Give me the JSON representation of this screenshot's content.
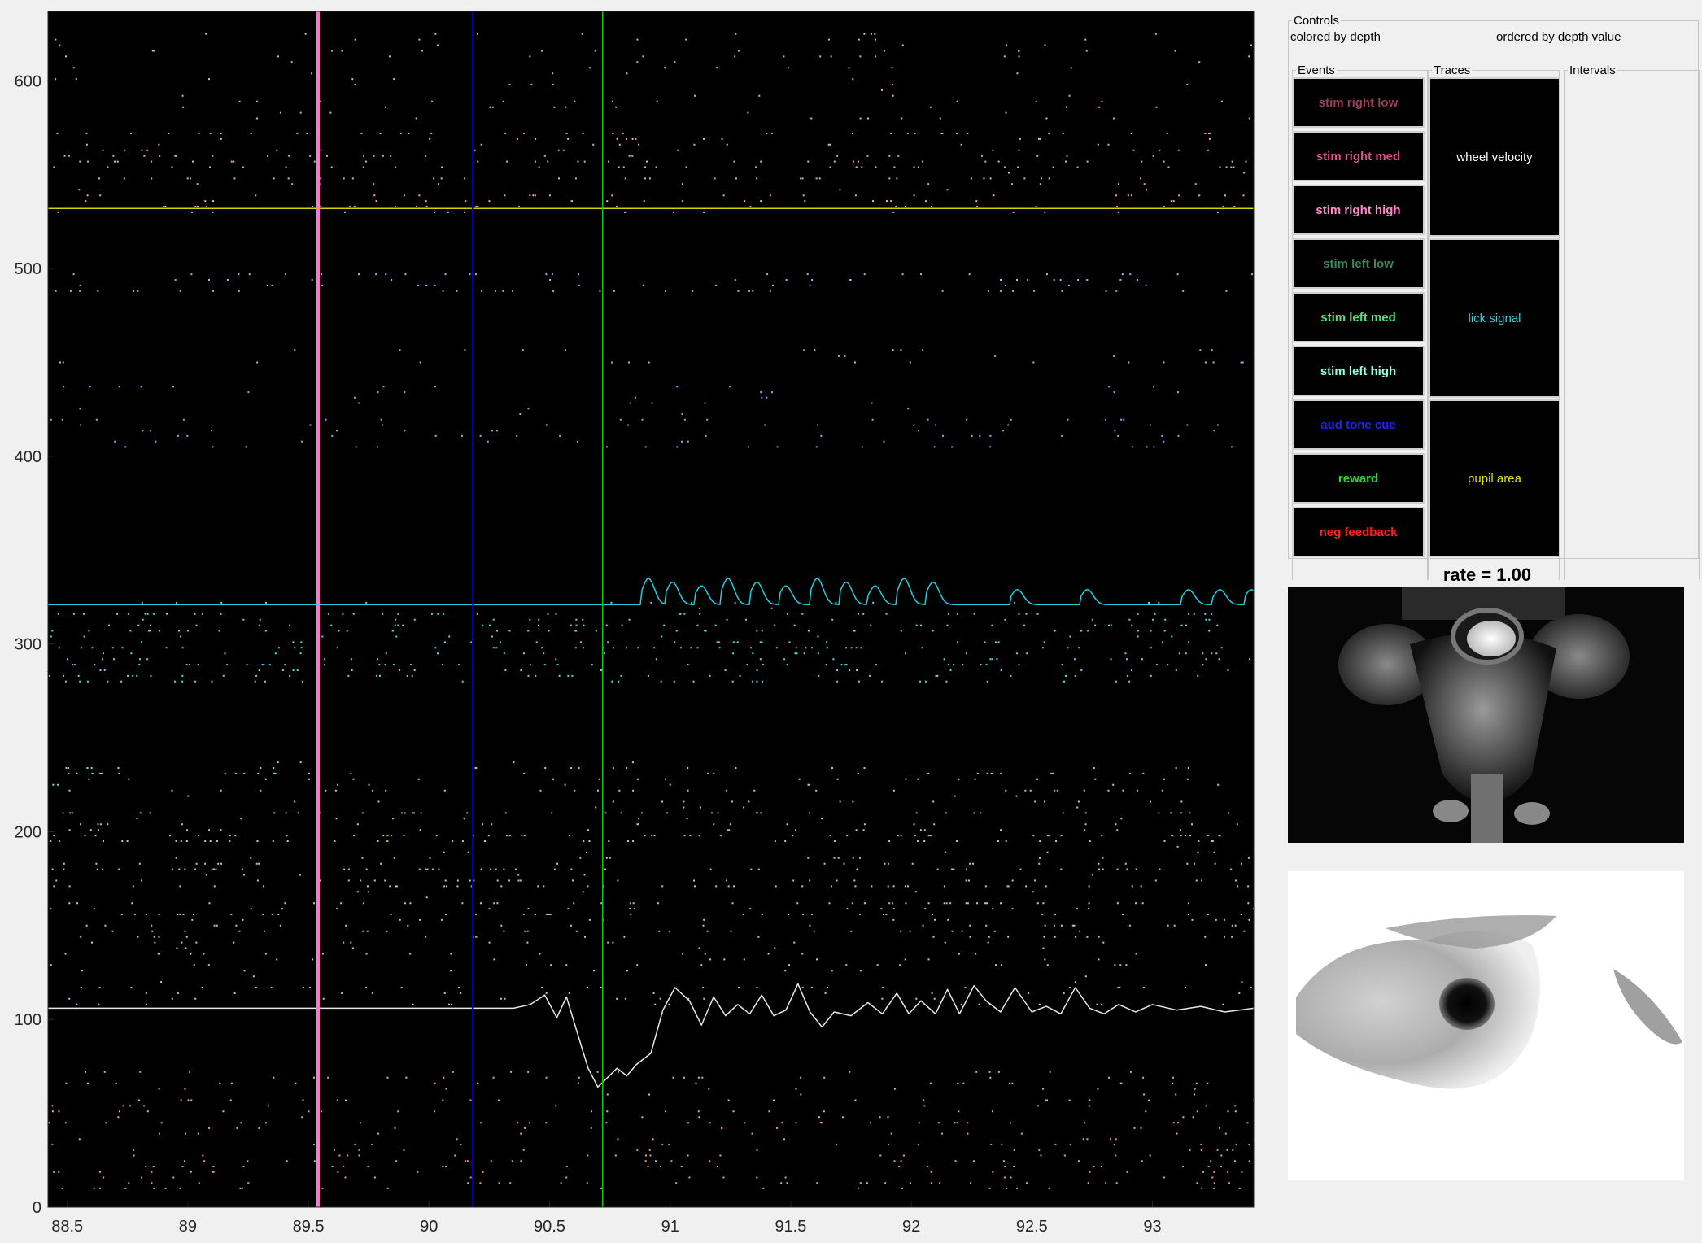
{
  "raster": {
    "x_ticks": [
      "88.5",
      "89",
      "89.5",
      "90",
      "90.5",
      "91",
      "91.5",
      "92",
      "92.5",
      "93"
    ],
    "x_tick_values": [
      88.5,
      89,
      89.5,
      90,
      90.5,
      91,
      91.5,
      92,
      92.5,
      93
    ],
    "y_ticks": [
      "0",
      "100",
      "200",
      "300",
      "400",
      "500",
      "600"
    ],
    "y_tick_values": [
      0,
      100,
      200,
      300,
      400,
      500,
      600
    ],
    "xlim": [
      88.42,
      93.42
    ],
    "ylim": [
      0,
      637
    ],
    "background": "#000000",
    "event_lines": [
      {
        "time": 89.54,
        "color": "#ff77cc",
        "label": "stim right high"
      },
      {
        "time": 90.18,
        "color": "#0000aa",
        "label": "aud tone cue"
      },
      {
        "time": 90.72,
        "color": "#00cc00",
        "label": "reward"
      }
    ],
    "trace_baselines": {
      "pupil_area": 532,
      "lick_signal": 321,
      "wheel_velocity": 106
    },
    "lick_peaks": [
      90.9,
      91.0,
      91.12,
      91.23,
      91.35,
      91.47,
      91.6,
      91.72,
      91.84,
      91.96,
      92.08,
      92.43,
      92.72,
      93.14,
      93.27,
      93.4
    ],
    "wheel_trace": [
      [
        88.42,
        106
      ],
      [
        90.2,
        106
      ],
      [
        90.35,
        106
      ],
      [
        90.42,
        108
      ],
      [
        90.48,
        113
      ],
      [
        90.53,
        101
      ],
      [
        90.57,
        112
      ],
      [
        90.61,
        95
      ],
      [
        90.66,
        74
      ],
      [
        90.7,
        64
      ],
      [
        90.74,
        69
      ],
      [
        90.78,
        74
      ],
      [
        90.82,
        70
      ],
      [
        90.86,
        76
      ],
      [
        90.92,
        82
      ],
      [
        90.97,
        105
      ],
      [
        91.02,
        117
      ],
      [
        91.08,
        110
      ],
      [
        91.13,
        97
      ],
      [
        91.18,
        112
      ],
      [
        91.23,
        102
      ],
      [
        91.28,
        108
      ],
      [
        91.33,
        103
      ],
      [
        91.38,
        113
      ],
      [
        91.43,
        102
      ],
      [
        91.48,
        105
      ],
      [
        91.53,
        119
      ],
      [
        91.58,
        104
      ],
      [
        91.63,
        96
      ],
      [
        91.68,
        104
      ],
      [
        91.75,
        102
      ],
      [
        91.82,
        109
      ],
      [
        91.88,
        103
      ],
      [
        91.94,
        114
      ],
      [
        91.99,
        103
      ],
      [
        92.04,
        110
      ],
      [
        92.1,
        103
      ],
      [
        92.15,
        116
      ],
      [
        92.2,
        103
      ],
      [
        92.26,
        118
      ],
      [
        92.31,
        110
      ],
      [
        92.37,
        104
      ],
      [
        92.43,
        117
      ],
      [
        92.5,
        104
      ],
      [
        92.56,
        107
      ],
      [
        92.62,
        103
      ],
      [
        92.68,
        117
      ],
      [
        92.74,
        106
      ],
      [
        92.8,
        103
      ],
      [
        92.86,
        108
      ],
      [
        92.93,
        104
      ],
      [
        93.0,
        108
      ],
      [
        93.1,
        105
      ],
      [
        93.2,
        107
      ],
      [
        93.3,
        104
      ],
      [
        93.42,
        106
      ]
    ],
    "spike_bands": [
      {
        "y": [
          580,
          628
        ],
        "color": "#e8a8c8",
        "density": 0.25
      },
      {
        "y": [
          530,
          575
        ],
        "color": "#e8a8c8",
        "density": 0.7
      },
      {
        "y": [
          488,
          500
        ],
        "color": "#b0b0f0",
        "density": 0.6
      },
      {
        "y": [
          450,
          460
        ],
        "color": "#b0b0f0",
        "density": 0.55
      },
      {
        "y": [
          405,
          440
        ],
        "color": "#a0a0f0",
        "density": 0.35
      },
      {
        "y": [
          280,
          325
        ],
        "color": "#60d8e8",
        "density": 0.8
      },
      {
        "y": [
          225,
          240
        ],
        "color": "#80e0d0",
        "density": 0.55
      },
      {
        "y": [
          150,
          225
        ],
        "color": "#a8d890",
        "density": 0.9
      },
      {
        "y": [
          108,
          150
        ],
        "color": "#d0d080",
        "density": 0.5
      },
      {
        "y": [
          45,
          75
        ],
        "color": "#f0b080",
        "density": 0.5
      },
      {
        "y": [
          10,
          45
        ],
        "color": "#f0a080",
        "density": 0.5
      }
    ]
  },
  "controls": {
    "legend": "Controls",
    "color_mode": "colored by depth",
    "order_mode": "ordered by depth value",
    "events_legend": "Events",
    "traces_legend": "Traces",
    "intervals_legend": "Intervals",
    "events": [
      {
        "label": "stim right low",
        "color": "#9c3c5c"
      },
      {
        "label": "stim right med",
        "color": "#e0508c"
      },
      {
        "label": "stim right high",
        "color": "#ff88cc"
      },
      {
        "label": "stim left low",
        "color": "#3a8a5a"
      },
      {
        "label": "stim left med",
        "color": "#50e080"
      },
      {
        "label": "stim left high",
        "color": "#90ffe0"
      },
      {
        "label": "aud tone cue",
        "color": "#2020ff"
      },
      {
        "label": "reward",
        "color": "#20e020"
      },
      {
        "label": "neg feedback",
        "color": "#ff2020"
      }
    ],
    "traces": [
      {
        "label": "wheel velocity",
        "color": "#ffffff"
      },
      {
        "label": "lick signal",
        "color": "#20d8e8"
      },
      {
        "label": "pupil area",
        "color": "#e0e000"
      }
    ]
  },
  "video": {
    "rate_title": "rate = 1.00"
  }
}
